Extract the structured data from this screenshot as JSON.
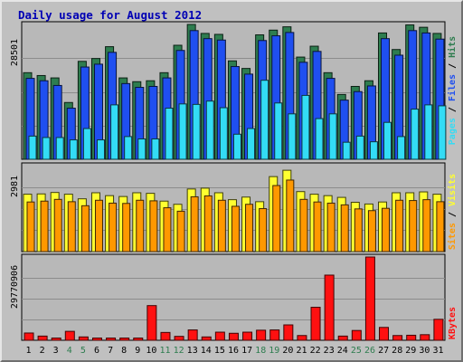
{
  "title": "Daily usage for August 2012",
  "colors": {
    "hits": "#2e7d4f",
    "files": "#1f4ff0",
    "pages": "#33dcf5",
    "visits": "#ffff30",
    "sites": "#ff9800",
    "kbytes": "#ff1010",
    "weekend_label": "#2e7d4f",
    "weekday_label": "#000000"
  },
  "chart_data": [
    {
      "type": "bar",
      "panel": "requests",
      "ytick_label": "28501",
      "ymax": 28501,
      "legend": {
        "pages": "Pages",
        "files": "Files",
        "hits": "Hits",
        "sep": " / "
      },
      "categories": [
        "1",
        "2",
        "3",
        "4",
        "5",
        "6",
        "7",
        "8",
        "9",
        "10",
        "11",
        "12",
        "13",
        "14",
        "15",
        "16",
        "17",
        "18",
        "19",
        "20",
        "21",
        "22",
        "23",
        "24",
        "25",
        "26",
        "27",
        "28",
        "29",
        "30",
        "31"
      ],
      "series": [
        {
          "name": "Hits",
          "values": [
            18300,
            17700,
            17200,
            12000,
            20700,
            21300,
            23800,
            17200,
            16400,
            16600,
            18300,
            24100,
            28500,
            26600,
            26400,
            20800,
            19200,
            26300,
            27300,
            28000,
            21600,
            23900,
            18300,
            13700,
            15400,
            16600,
            26700,
            23200,
            28400,
            27900,
            26600
          ]
        },
        {
          "name": "Files",
          "values": [
            17100,
            16600,
            15600,
            10800,
            19500,
            20100,
            22600,
            16000,
            15200,
            15400,
            17200,
            23000,
            27200,
            25500,
            25200,
            19600,
            18000,
            25100,
            26100,
            26800,
            20500,
            22800,
            17100,
            12500,
            14300,
            15500,
            25500,
            22000,
            27200,
            26700,
            25400
          ]
        },
        {
          "name": "Pages",
          "values": [
            4900,
            4600,
            4600,
            4100,
            6500,
            4100,
            11500,
            4800,
            4300,
            4300,
            10800,
            11700,
            11600,
            12300,
            10900,
            5300,
            6500,
            16700,
            11900,
            9600,
            13500,
            8600,
            9600,
            3600,
            4900,
            3700,
            7800,
            4800,
            10600,
            11500,
            11300
          ]
        }
      ]
    },
    {
      "type": "bar",
      "panel": "visitors",
      "ytick_label": "2981",
      "ymax": 2981,
      "legend": {
        "sites": "Sites",
        "visits": "Visits",
        "sep": " / "
      },
      "categories": [
        "1",
        "2",
        "3",
        "4",
        "5",
        "6",
        "7",
        "8",
        "9",
        "10",
        "11",
        "12",
        "13",
        "14",
        "15",
        "16",
        "17",
        "18",
        "19",
        "20",
        "21",
        "22",
        "23",
        "24",
        "25",
        "26",
        "27",
        "28",
        "29",
        "30",
        "31"
      ],
      "series": [
        {
          "name": "Visits",
          "values": [
            1990,
            2000,
            2050,
            1990,
            1830,
            2040,
            1940,
            1910,
            2040,
            2020,
            1750,
            1640,
            2170,
            2200,
            2040,
            1800,
            1890,
            1730,
            2600,
            2820,
            2080,
            1990,
            1940,
            1880,
            1710,
            1650,
            1720,
            2040,
            2040,
            2070,
            1990
          ]
        },
        {
          "name": "Sites",
          "values": [
            1720,
            1750,
            1810,
            1730,
            1590,
            1780,
            1680,
            1670,
            1780,
            1760,
            1520,
            1400,
            1900,
            1930,
            1780,
            1570,
            1640,
            1490,
            2290,
            2480,
            1810,
            1720,
            1680,
            1620,
            1480,
            1420,
            1500,
            1780,
            1770,
            1800,
            1730
          ]
        }
      ]
    },
    {
      "type": "bar",
      "panel": "kbytes",
      "ytick_label": "29770906",
      "ymax": 29770906,
      "legend": {
        "kbytes": "KBytes"
      },
      "categories": [
        "1",
        "2",
        "3",
        "4",
        "5",
        "6",
        "7",
        "8",
        "9",
        "10",
        "11",
        "12",
        "13",
        "14",
        "15",
        "16",
        "17",
        "18",
        "19",
        "20",
        "21",
        "22",
        "23",
        "24",
        "25",
        "26",
        "27",
        "28",
        "29",
        "30",
        "31"
      ],
      "series": [
        {
          "name": "KBytes",
          "values": [
            2600000,
            1500000,
            800000,
            3200000,
            1200000,
            800000,
            800000,
            800000,
            800000,
            12400000,
            2800000,
            1400000,
            3700000,
            1200000,
            2900000,
            2500000,
            2900000,
            3600000,
            3700000,
            5500000,
            1700000,
            11800000,
            23300000,
            1500000,
            3500000,
            29770906,
            4600000,
            1700000,
            1800000,
            2000000,
            7500000
          ]
        }
      ]
    }
  ],
  "x_axis": {
    "labels": [
      "1",
      "2",
      "3",
      "4",
      "5",
      "6",
      "7",
      "8",
      "9",
      "10",
      "11",
      "12",
      "13",
      "14",
      "15",
      "16",
      "17",
      "18",
      "19",
      "20",
      "21",
      "22",
      "23",
      "24",
      "25",
      "26",
      "27",
      "28",
      "29",
      "30",
      "31"
    ],
    "weekend": [
      false,
      false,
      false,
      true,
      true,
      false,
      false,
      false,
      false,
      false,
      true,
      true,
      false,
      false,
      false,
      false,
      false,
      true,
      true,
      false,
      false,
      false,
      false,
      false,
      true,
      true,
      false,
      false,
      false,
      false,
      false
    ]
  }
}
